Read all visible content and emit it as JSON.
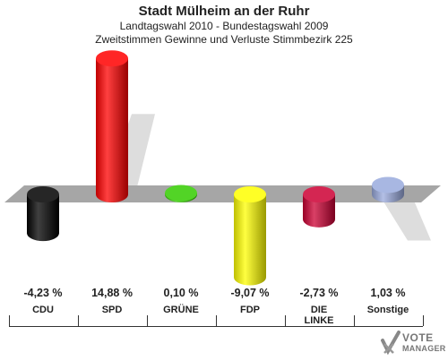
{
  "header": {
    "title": "Stadt Mülheim an der Ruhr",
    "subtitle": "Landtagswahl 2010 - Bundestagswahl 2009",
    "subtitle2": "Zweitstimmen Gewinne und Verluste Stimmbezirk 225"
  },
  "chart_data": {
    "type": "bar",
    "title": "Stadt Mülheim an der Ruhr",
    "categories": [
      "CDU",
      "SPD",
      "GRÜNE",
      "FDP",
      "DIE LINKE",
      "Sonstige"
    ],
    "values": [
      -4.23,
      14.88,
      0.1,
      -9.07,
      -2.73,
      1.03
    ],
    "value_labels": [
      "-4,23 %",
      "14,88 %",
      "0,10 %",
      "-9,07 %",
      "-2,73 %",
      "1,03 %"
    ],
    "colors": [
      "#000000",
      "#ff0000",
      "#33cc00",
      "#ffff00",
      "#cc0033",
      "#99aadd"
    ],
    "ylim": [
      -10.5,
      16
    ],
    "xlabel": "",
    "ylabel": ""
  },
  "categories_display": [
    {
      "line1": "CDU",
      "line2": ""
    },
    {
      "line1": "SPD",
      "line2": ""
    },
    {
      "line1": "GRÜNE",
      "line2": ""
    },
    {
      "line1": "FDP",
      "line2": ""
    },
    {
      "line1": "DIE",
      "line2": "LINKE"
    },
    {
      "line1": "Sonstige",
      "line2": ""
    }
  ],
  "logo": {
    "line1": "VOTE",
    "line2": "MANAGER",
    "icon": "checkmark-x-icon"
  }
}
